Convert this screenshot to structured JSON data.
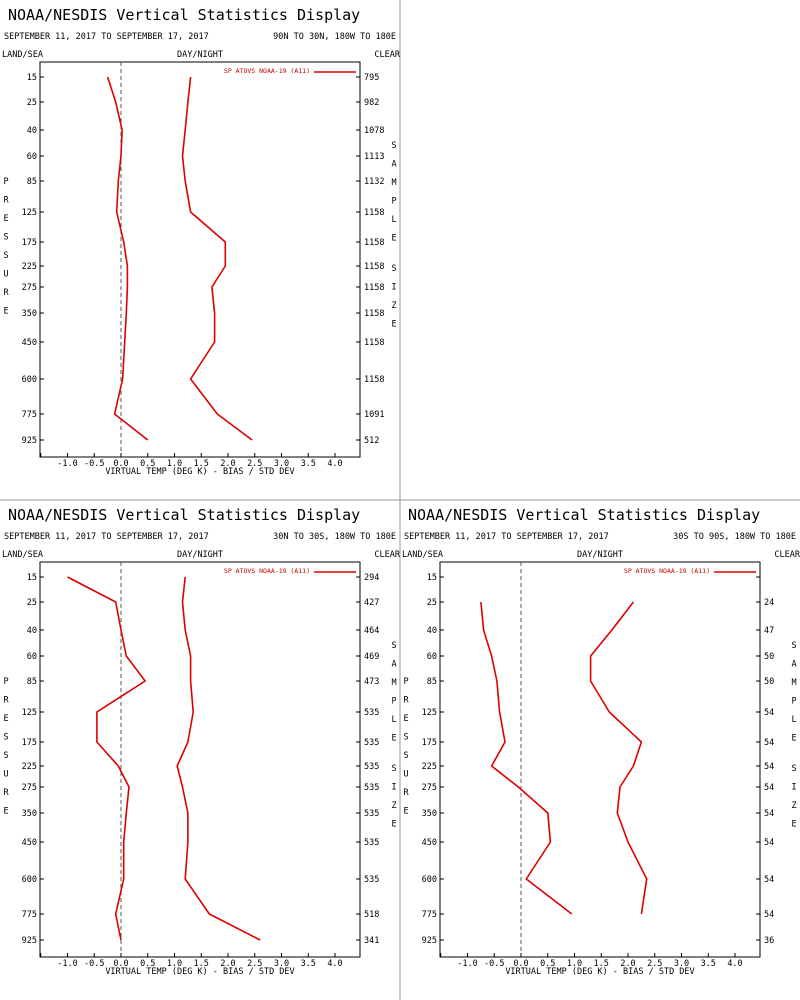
{
  "chart_data": [
    {
      "type": "line",
      "title": "NOAA/NESDIS Vertical Statistics Display",
      "date_range": "SEPTEMBER 11, 2017 TO SEPTEMBER 17, 2017",
      "region": "90N TO 30N, 180W TO 180E",
      "surface_label": "LAND/SEA",
      "time_label": "DAY/NIGHT",
      "sky_label": "CLEAR",
      "legend": "SP ATOVS NOAA-19 (A11)",
      "xlabel": "VIRTUAL TEMP (DEG K) - BIAS / STD DEV",
      "ylabel": "PRESSURE",
      "y2label": "SAMPLE SIZE",
      "xlim": [
        -1.5,
        4.5
      ],
      "x_ticks": [
        "-1.0",
        "-0.5",
        "0.0",
        "0.5",
        "1.0",
        "1.5",
        "2.0",
        "2.5",
        "3.0",
        "3.5",
        "4.0"
      ],
      "pressure_levels": [
        "15",
        "25",
        "40",
        "60",
        "85",
        "125",
        "175",
        "225",
        "275",
        "350",
        "450",
        "600",
        "775",
        "925"
      ],
      "sample_size": [
        "795",
        "982",
        "1078",
        "1113",
        "1132",
        "1158",
        "1158",
        "1158",
        "1158",
        "1158",
        "1158",
        "1158",
        "1091",
        "512"
      ],
      "series": [
        {
          "values": [
            -0.25,
            -0.1,
            0.02,
            0.0,
            -0.05,
            -0.08,
            0.05,
            0.12,
            0.12,
            0.1,
            0.07,
            0.03,
            -0.12,
            0.5
          ],
          "first_level_index": 0
        },
        {
          "values": [
            1.3,
            1.25,
            1.2,
            1.15,
            1.2,
            1.3,
            1.95,
            1.95,
            1.7,
            1.75,
            1.75,
            1.3,
            1.8,
            2.45
          ],
          "first_level_index": 0
        }
      ],
      "line_color": "#dd0000"
    },
    {
      "type": "line",
      "title": "NOAA/NESDIS Vertical Statistics Display",
      "date_range": "SEPTEMBER 11, 2017 TO SEPTEMBER 17, 2017",
      "region": "30N TO 30S, 180W TO 180E",
      "surface_label": "LAND/SEA",
      "time_label": "DAY/NIGHT",
      "sky_label": "CLEAR",
      "legend": "SP ATOVS NOAA-19 (A11)",
      "xlabel": "VIRTUAL TEMP (DEG K) - BIAS / STD DEV",
      "ylabel": "PRESSURE",
      "y2label": "SAMPLE SIZE",
      "xlim": [
        -1.5,
        4.5
      ],
      "x_ticks": [
        "-1.0",
        "-0.5",
        "0.0",
        "0.5",
        "1.0",
        "1.5",
        "2.0",
        "2.5",
        "3.0",
        "3.5",
        "4.0"
      ],
      "pressure_levels": [
        "15",
        "25",
        "40",
        "60",
        "85",
        "125",
        "175",
        "225",
        "275",
        "350",
        "450",
        "600",
        "775",
        "925"
      ],
      "sample_size": [
        "294",
        "427",
        "464",
        "469",
        "473",
        "535",
        "535",
        "535",
        "535",
        "535",
        "535",
        "535",
        "518",
        "341"
      ],
      "series": [
        {
          "values": [
            -1.0,
            -0.1,
            0.0,
            0.1,
            0.45,
            -0.45,
            -0.45,
            -0.05,
            0.15,
            0.1,
            0.05,
            0.05,
            -0.1,
            0.0
          ],
          "first_level_index": 0
        },
        {
          "values": [
            1.2,
            1.15,
            1.2,
            1.3,
            1.3,
            1.35,
            1.25,
            1.05,
            1.15,
            1.25,
            1.25,
            1.2,
            1.65,
            2.6
          ],
          "first_level_index": 0
        }
      ],
      "line_color": "#dd0000"
    },
    {
      "type": "line",
      "title": "NOAA/NESDIS Vertical Statistics Display",
      "date_range": "SEPTEMBER 11, 2017 TO SEPTEMBER 17, 2017",
      "region": "30S TO 90S, 180W TO 180E",
      "surface_label": "LAND/SEA",
      "time_label": "DAY/NIGHT",
      "sky_label": "CLEAR",
      "legend": "SP ATOVS NOAA-19 (A11)",
      "xlabel": "VIRTUAL TEMP (DEG K) - BIAS / STD DEV",
      "ylabel": "PRESSURE",
      "y2label": "SAMPLE SIZE",
      "xlim": [
        -1.5,
        4.5
      ],
      "x_ticks": [
        "-1.0",
        "-0.5",
        "0.0",
        "0.5",
        "1.0",
        "1.5",
        "2.0",
        "2.5",
        "3.0",
        "3.5",
        "4.0"
      ],
      "pressure_levels": [
        "15",
        "25",
        "40",
        "60",
        "85",
        "125",
        "175",
        "225",
        "275",
        "350",
        "450",
        "600",
        "775",
        "925"
      ],
      "sample_size": [
        "",
        "24",
        "47",
        "50",
        "50",
        "54",
        "54",
        "54",
        "54",
        "54",
        "54",
        "54",
        "54",
        "36"
      ],
      "series": [
        {
          "values": [
            -0.75,
            -0.7,
            -0.55,
            -0.45,
            -0.4,
            -0.3,
            -0.55,
            -0.05,
            0.5,
            0.55,
            0.1,
            0.95
          ],
          "first_level_index": 1
        },
        {
          "values": [
            2.1,
            1.7,
            1.3,
            1.3,
            1.65,
            2.25,
            2.1,
            1.85,
            1.8,
            2.0,
            2.35,
            2.25
          ],
          "first_level_index": 1
        }
      ],
      "line_color": "#dd0000"
    }
  ]
}
